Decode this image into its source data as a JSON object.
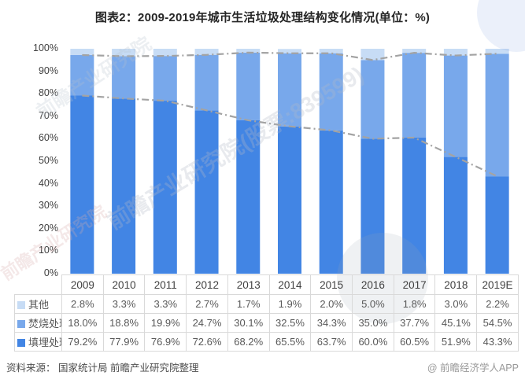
{
  "title": "图表2：2009-2019年城市生活垃圾处理结构变化情况(单位：%)",
  "footer": {
    "source": "资料来源：  国家统计局 前瞻产业研究院整理",
    "credit": "@ 前瞻经济学人APP"
  },
  "watermarks": {
    "center": "前瞻产业研究院(股票:839599)",
    "topleft": "前瞻产业研究院",
    "leftpink": "前瞻产业研究院"
  },
  "chart_data": {
    "type": "bar",
    "stacked": true,
    "title": "图表2：2009-2019年城市生活垃圾处理结构变化情况(单位：%)",
    "categories": [
      "2009",
      "2010",
      "2011",
      "2012",
      "2013",
      "2014",
      "2015",
      "2016",
      "2017",
      "2018",
      "2019E"
    ],
    "series": [
      {
        "name": "填埋处理",
        "color": "#4285E4",
        "values": [
          79.2,
          77.9,
          76.9,
          72.6,
          68.2,
          65.5,
          63.7,
          60.0,
          60.5,
          51.9,
          43.3
        ]
      },
      {
        "name": "焚烧处理",
        "color": "#78A8EB",
        "values": [
          18.0,
          18.8,
          19.9,
          24.7,
          30.1,
          32.5,
          34.3,
          35.0,
          37.7,
          45.1,
          54.5
        ]
      },
      {
        "name": "其他",
        "color": "#C7DCF5",
        "values": [
          2.8,
          3.3,
          3.3,
          2.7,
          1.7,
          1.9,
          2.0,
          5.0,
          1.8,
          3.0,
          2.2
        ]
      }
    ],
    "overlay_lines": [
      {
        "name": "填埋处理+焚烧处理累计",
        "style": "dash-dot",
        "color": "#A3A3A3",
        "values": [
          97.2,
          96.7,
          96.8,
          97.3,
          98.3,
          98.0,
          98.0,
          95.0,
          98.2,
          97.0,
          97.8
        ]
      },
      {
        "name": "填埋处理",
        "style": "dash-dot",
        "color": "#A3A3A3",
        "values": [
          79.2,
          77.9,
          76.9,
          72.6,
          68.2,
          65.5,
          63.7,
          60.0,
          60.5,
          51.9,
          43.3
        ]
      }
    ],
    "xlabel": "",
    "ylabel": "",
    "ylim": [
      0,
      100
    ],
    "yticks": [
      "0%",
      "10%",
      "20%",
      "30%",
      "40%",
      "50%",
      "60%",
      "70%",
      "80%",
      "90%",
      "100%"
    ],
    "grid": false,
    "legend_position": "table-left"
  },
  "table": {
    "rows": [
      {
        "label": "其他",
        "color": "#C7DCF5",
        "values": [
          "2.8%",
          "3.3%",
          "3.3%",
          "2.7%",
          "1.7%",
          "1.9%",
          "2.0%",
          "5.0%",
          "1.8%",
          "3.0%",
          "2.2%"
        ]
      },
      {
        "label": "焚烧处理",
        "color": "#78A8EB",
        "values": [
          "18.0%",
          "18.8%",
          "19.9%",
          "24.7%",
          "30.1%",
          "32.5%",
          "34.3%",
          "35.0%",
          "37.7%",
          "45.1%",
          "54.5%"
        ]
      },
      {
        "label": "填埋处理",
        "color": "#4285E4",
        "values": [
          "79.2%",
          "77.9%",
          "76.9%",
          "72.6%",
          "68.2%",
          "65.5%",
          "63.7%",
          "60.0%",
          "60.5%",
          "51.9%",
          "43.3%"
        ]
      }
    ]
  }
}
